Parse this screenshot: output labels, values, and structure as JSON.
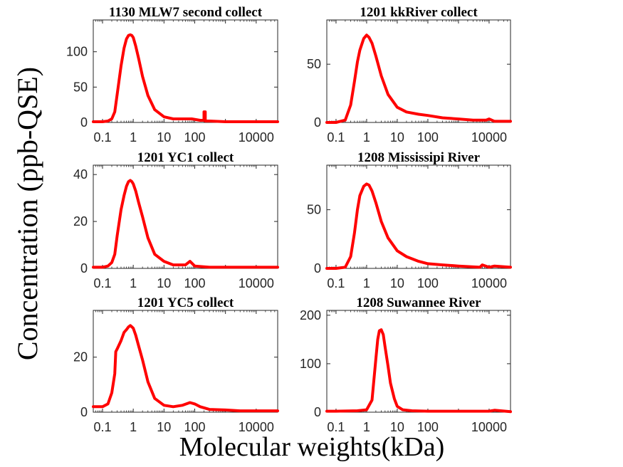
{
  "figure": {
    "ylabel": "Concentration (ppb-QSE)",
    "xlabel": "Molecular weights(kDa)",
    "line_color": "#ff0000",
    "axis_color": "#262626"
  },
  "chart_data": [
    {
      "type": "line",
      "title": "1130 MLW7 second collect",
      "x_scale": "log",
      "xlim": [
        0.05,
        50000
      ],
      "ylim": [
        0,
        145
      ],
      "x_ticks": [
        0.1,
        1,
        10,
        100,
        10000
      ],
      "x_tick_labels": [
        "0.1",
        "1",
        "10",
        "100",
        "10000"
      ],
      "y_ticks": [
        0,
        50,
        100
      ],
      "y_tick_labels": [
        "0",
        "50",
        "100"
      ],
      "x": [
        0.05,
        0.1,
        0.15,
        0.2,
        0.25,
        0.3,
        0.4,
        0.5,
        0.6,
        0.7,
        0.8,
        0.9,
        1,
        1.2,
        1.5,
        2,
        3,
        5,
        10,
        20,
        50,
        80,
        150,
        200,
        200.1,
        220,
        220.1,
        300,
        1000,
        10000,
        50000
      ],
      "y": [
        1,
        1,
        2,
        5,
        15,
        40,
        80,
        105,
        118,
        123,
        124,
        123,
        120,
        108,
        90,
        65,
        38,
        18,
        8,
        5,
        5,
        5,
        3,
        3,
        15,
        15,
        2,
        2,
        1,
        1,
        1
      ]
    },
    {
      "type": "line",
      "title": "1201 kkRiver collect",
      "x_scale": "log",
      "xlim": [
        0.05,
        50000
      ],
      "ylim": [
        0,
        88
      ],
      "x_ticks": [
        0.1,
        1,
        10,
        100,
        10000
      ],
      "x_tick_labels": [
        "0.1",
        "1",
        "10",
        "100",
        "10000"
      ],
      "y_ticks": [
        0,
        50
      ],
      "y_tick_labels": [
        "0",
        "50"
      ],
      "x": [
        0.05,
        0.1,
        0.2,
        0.3,
        0.4,
        0.5,
        0.6,
        0.8,
        1,
        1.2,
        1.5,
        2,
        3,
        5,
        10,
        20,
        50,
        100,
        300,
        1000,
        3000,
        8000,
        10000,
        15000,
        50000
      ],
      "y": [
        0,
        0,
        2,
        15,
        35,
        52,
        62,
        72,
        75,
        73,
        68,
        57,
        40,
        24,
        13,
        9,
        7,
        6,
        4,
        3,
        2,
        2,
        3,
        1,
        1
      ]
    },
    {
      "type": "line",
      "title": "1201 YC1 collect",
      "x_scale": "log",
      "xlim": [
        0.05,
        50000
      ],
      "ylim": [
        0,
        44
      ],
      "x_ticks": [
        0.1,
        1,
        10,
        100,
        10000
      ],
      "x_tick_labels": [
        "0.1",
        "1",
        "10",
        "100",
        "10000"
      ],
      "y_ticks": [
        0,
        20,
        40
      ],
      "y_tick_labels": [
        "0",
        "20",
        "40"
      ],
      "x": [
        0.05,
        0.1,
        0.15,
        0.2,
        0.25,
        0.3,
        0.4,
        0.5,
        0.6,
        0.7,
        0.8,
        0.9,
        1,
        1.2,
        1.5,
        2,
        3,
        5,
        10,
        20,
        50,
        70,
        100,
        300,
        1000,
        10000,
        50000
      ],
      "y": [
        0.5,
        0.5,
        1,
        2.5,
        6,
        14,
        25,
        31,
        35,
        37,
        37.5,
        37,
        36,
        33,
        28,
        22,
        13,
        6,
        3,
        1.5,
        1.5,
        3,
        1,
        0.5,
        0.5,
        0.5,
        0.5
      ]
    },
    {
      "type": "line",
      "title": "1208 Mississipi River",
      "x_scale": "log",
      "xlim": [
        0.05,
        50000
      ],
      "ylim": [
        0,
        88
      ],
      "x_ticks": [
        0.1,
        1,
        10,
        100,
        10000
      ],
      "x_tick_labels": [
        "0.1",
        "1",
        "10",
        "100",
        "10000"
      ],
      "y_ticks": [
        0,
        50
      ],
      "y_tick_labels": [
        "0",
        "50"
      ],
      "x": [
        0.05,
        0.1,
        0.2,
        0.3,
        0.4,
        0.5,
        0.6,
        0.8,
        1,
        1.2,
        1.5,
        2,
        3,
        5,
        10,
        20,
        50,
        100,
        300,
        1000,
        5000,
        6000,
        10000,
        15000,
        50000
      ],
      "y": [
        0,
        0,
        1,
        10,
        30,
        50,
        62,
        70,
        72,
        71,
        66,
        56,
        40,
        26,
        15,
        10,
        6,
        4,
        3,
        2,
        1,
        3,
        1,
        2,
        1
      ]
    },
    {
      "type": "line",
      "title": "1201 YC5 collect",
      "x_scale": "log",
      "xlim": [
        0.05,
        50000
      ],
      "ylim": [
        0,
        37
      ],
      "x_ticks": [
        0.1,
        1,
        10,
        100,
        10000
      ],
      "x_tick_labels": [
        "0.1",
        "1",
        "10",
        "100",
        "10000"
      ],
      "y_ticks": [
        0,
        20
      ],
      "y_tick_labels": [
        "0",
        "20"
      ],
      "x": [
        0.05,
        0.08,
        0.1,
        0.15,
        0.2,
        0.25,
        0.27,
        0.3,
        0.4,
        0.5,
        0.6,
        0.7,
        0.8,
        0.9,
        1,
        1.2,
        1.5,
        2,
        3,
        5,
        10,
        20,
        40,
        70,
        100,
        150,
        300,
        1000,
        3000,
        10000,
        50000
      ],
      "y": [
        2,
        2,
        2,
        3,
        7,
        14,
        22,
        23,
        26,
        29,
        30,
        31,
        31.5,
        31,
        30.5,
        28,
        24,
        19,
        11,
        5,
        2.5,
        2,
        2.5,
        3.5,
        3,
        2,
        1,
        0.8,
        0.5,
        0.5,
        0.5
      ]
    },
    {
      "type": "line",
      "title": "1208 Suwannee River",
      "x_scale": "log",
      "xlim": [
        0.05,
        50000
      ],
      "ylim": [
        0,
        210
      ],
      "x_ticks": [
        0.1,
        1,
        10,
        100,
        10000
      ],
      "x_tick_labels": [
        "0.1",
        "1",
        "10",
        "100",
        "10000"
      ],
      "y_ticks": [
        0,
        100,
        200
      ],
      "y_tick_labels": [
        "0",
        "100",
        "200"
      ],
      "x": [
        0.05,
        0.1,
        0.5,
        1,
        1.5,
        2,
        2.3,
        2.6,
        3,
        3.5,
        4,
        5,
        6,
        8,
        10,
        15,
        30,
        100,
        1000,
        10000,
        15000,
        50000
      ],
      "y": [
        2,
        2,
        3,
        5,
        25,
        110,
        150,
        168,
        170,
        160,
        135,
        95,
        60,
        28,
        12,
        5,
        3,
        2,
        2,
        2,
        4,
        1
      ]
    }
  ]
}
